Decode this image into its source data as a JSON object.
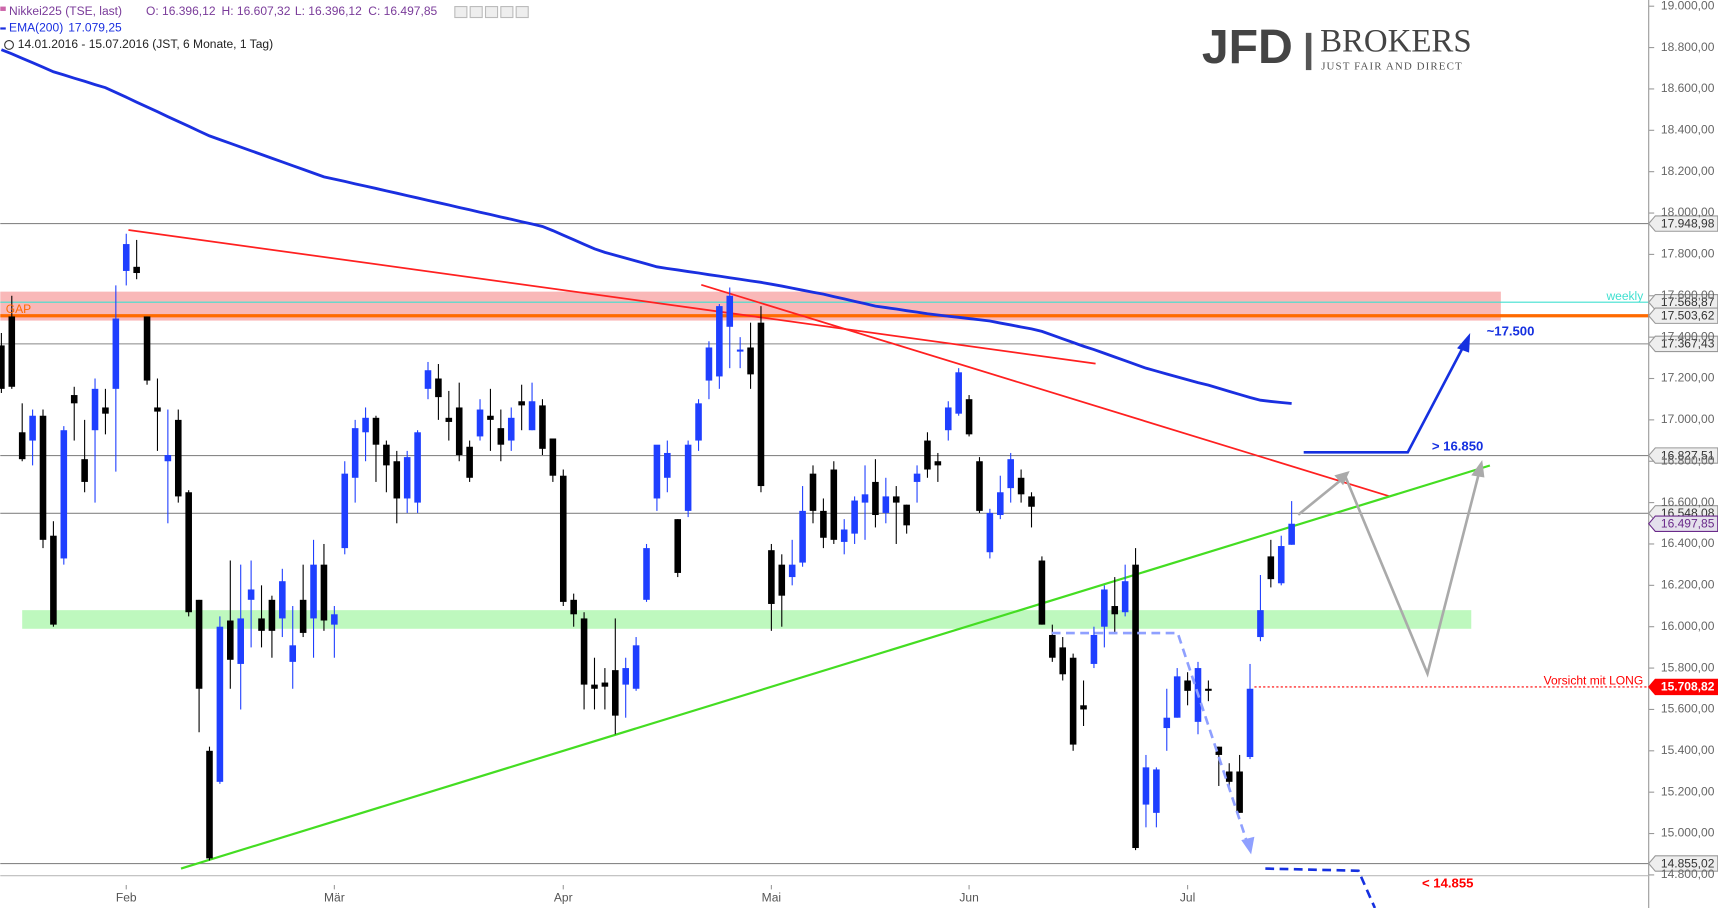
{
  "chart_data": {
    "type": "candlestick",
    "title": "Nikkei225 (TSE, last)",
    "ohlc_header": [
      "O: 16.396,12",
      "H: 16.607,32",
      "L: 16.396,12",
      "C: 16.497,85"
    ],
    "period": "14.01.2016 - 15.07.2016 (JST, 6 Monate, 1 Tag)",
    "logo": {
      "main": "JFD",
      "brand": "BROKERS",
      "tagline": "JUST FAIR AND DIRECT"
    },
    "up_color": "#1f3fff",
    "down_color": "#000000",
    "categories": [
      null,
      null,
      null,
      null,
      null,
      null,
      null,
      null,
      null,
      null,
      null,
      null,
      "Feb",
      null,
      null,
      null,
      null,
      null,
      null,
      null,
      null,
      null,
      null,
      null,
      null,
      null,
      null,
      null,
      null,
      null,
      null,
      null,
      "Mär",
      null,
      null,
      null,
      null,
      null,
      null,
      null,
      null,
      null,
      null,
      null,
      null,
      null,
      null,
      null,
      null,
      null,
      null,
      null,
      null,
      null,
      "Apr",
      null,
      null,
      null,
      null,
      null,
      null,
      null,
      null,
      null,
      null,
      null,
      null,
      null,
      null,
      null,
      null,
      null,
      null,
      null,
      "Mai",
      null,
      null,
      null,
      null,
      null,
      null,
      null,
      null,
      null,
      null,
      null,
      null,
      null,
      null,
      null,
      null,
      null,
      null,
      "Jun",
      null,
      null,
      null,
      null,
      null,
      null,
      null,
      null,
      null,
      null,
      null,
      null,
      null,
      null,
      null,
      null,
      null,
      null,
      null,
      null,
      "Jul",
      null,
      null,
      null,
      null,
      null,
      null,
      null,
      null,
      null,
      null
    ],
    "open": [
      17360,
      17500,
      16940,
      16900,
      17020,
      16440,
      16330,
      17120,
      16810,
      16950,
      17060,
      17150,
      17720,
      17740,
      17500,
      17060,
      16800,
      17000,
      16650,
      16130,
      15400,
      15250,
      16030,
      15820,
      16130,
      16040,
      16130,
      16040,
      15830,
      16130,
      16040,
      16300,
      16010,
      16380,
      16720,
      16940,
      17010,
      16880,
      16800,
      16620,
      16600,
      17150,
      17200,
      17010,
      17060,
      16870,
      16920,
      17020,
      16960,
      16900,
      17090,
      16950,
      17070,
      16910,
      16730,
      16130,
      16040,
      15720,
      15730,
      15790,
      15720,
      15700,
      16130,
      16620,
      16720,
      16520,
      16560,
      16900,
      17190,
      17210,
      17450,
      17330,
      17350,
      17470,
      16370,
      16300,
      16240,
      16310,
      16740,
      16560,
      16760,
      16410,
      16450,
      16600,
      16700,
      16550,
      16630,
      16590,
      16700,
      16900,
      16800,
      16950,
      17030,
      17100,
      16800,
      16360,
      16540,
      16670,
      16720,
      16630,
      16320,
      15960,
      15900,
      15850,
      15620,
      15820,
      16000,
      16100,
      16070,
      16300,
      15140,
      15100,
      15510,
      15560,
      15740,
      15540,
      15700,
      15420,
      15300,
      15300,
      15370,
      15950,
      16340,
      16210,
      16396.12
    ],
    "high": [
      17420,
      17600,
      17080,
      17050,
      17050,
      16510,
      16970,
      17160,
      17000,
      17200,
      17150,
      17650,
      17900,
      17870,
      17500,
      17200,
      17050,
      17050,
      16660,
      16130,
      15420,
      16050,
      16320,
      16300,
      16320,
      16200,
      16150,
      16280,
      16100,
      16300,
      16420,
      16400,
      16100,
      16800,
      17000,
      17060,
      17020,
      16900,
      16850,
      16850,
      16950,
      17280,
      17270,
      17140,
      17180,
      16900,
      17100,
      17150,
      17050,
      17060,
      17170,
      17180,
      17100,
      16910,
      16760,
      16160,
      16070,
      15850,
      15800,
      16040,
      15850,
      15950,
      16400,
      16860,
      16900,
      16520,
      16900,
      17100,
      17380,
      17560,
      17640,
      17400,
      17470,
      17550,
      16400,
      16350,
      16420,
      16680,
      16780,
      16620,
      16800,
      16520,
      16630,
      16780,
      16810,
      16720,
      16680,
      16590,
      16780,
      16940,
      16840,
      17090,
      17250,
      17120,
      16820,
      16570,
      16730,
      16840,
      16760,
      16650,
      16340,
      16010,
      15950,
      15870,
      15740,
      16000,
      16200,
      16240,
      16300,
      16380,
      15380,
      15320,
      15700,
      15800,
      15780,
      15830,
      15740,
      15420,
      15340,
      15380,
      15820,
      16250,
      16420,
      16440,
      16607.32
    ],
    "low": [
      17130,
      17150,
      16800,
      16780,
      16380,
      16000,
      16300,
      16900,
      16650,
      16600,
      16930,
      16750,
      17650,
      17680,
      17170,
      16850,
      16500,
      16600,
      16050,
      15490,
      14870,
      15240,
      15700,
      15600,
      15900,
      15900,
      15850,
      15950,
      15700,
      15950,
      15850,
      15980,
      15850,
      16350,
      16600,
      16800,
      16700,
      16650,
      16500,
      16550,
      16550,
      17100,
      17000,
      16900,
      16800,
      16700,
      16900,
      16850,
      16800,
      16850,
      16950,
      16950,
      16830,
      16700,
      16100,
      16000,
      15600,
      15600,
      15600,
      15480,
      15560,
      15690,
      16120,
      16560,
      16650,
      16240,
      16530,
      16850,
      17100,
      17150,
      17250,
      17250,
      17150,
      16650,
      15980,
      16000,
      16200,
      16290,
      16500,
      16380,
      16400,
      16350,
      16400,
      16420,
      16480,
      16500,
      16400,
      16450,
      16600,
      16720,
      16700,
      16900,
      17020,
      16920,
      16550,
      16330,
      16520,
      16600,
      16600,
      16480,
      16010,
      15830,
      15740,
      15400,
      15520,
      15800,
      15900,
      15970,
      16050,
      14920,
      15030,
      15030,
      15400,
      15560,
      15620,
      15480,
      15640,
      15230,
      15220,
      15100,
      15360,
      15930,
      16190,
      16200,
      16396.12
    ],
    "close": [
      17150,
      17160,
      16810,
      17020,
      16420,
      16010,
      16950,
      17080,
      16700,
      17150,
      17030,
      17490,
      17850,
      17710,
      17190,
      17040,
      16830,
      16630,
      16070,
      15700,
      14880,
      16000,
      15840,
      16040,
      16180,
      15980,
      15980,
      16220,
      15910,
      15970,
      16300,
      16030,
      16060,
      16740,
      16960,
      17010,
      16880,
      16780,
      16620,
      16820,
      16940,
      17240,
      17110,
      16990,
      16830,
      16720,
      17050,
      17000,
      16880,
      17010,
      17070,
      17090,
      16860,
      16730,
      16120,
      16060,
      15720,
      15700,
      15710,
      15570,
      15800,
      15910,
      16380,
      16880,
      16840,
      16260,
      16880,
      17080,
      17350,
      17550,
      17600,
      17340,
      17220,
      16680,
      16110,
      16150,
      16300,
      16560,
      16560,
      16430,
      16420,
      16470,
      16610,
      16640,
      16540,
      16630,
      16600,
      16490,
      16740,
      16760,
      16780,
      17060,
      17230,
      16930,
      16560,
      16550,
      16650,
      16810,
      16640,
      16580,
      16010,
      15850,
      15770,
      15430,
      15600,
      15960,
      16180,
      16060,
      16220,
      14930,
      15320,
      15310,
      15560,
      15760,
      15690,
      15800,
      15690,
      15380,
      15250,
      15100,
      15700,
      16080,
      16230,
      16390,
      16497.85
    ],
    "ema": {
      "name": "EMA(200)",
      "value_label": "17.079,25",
      "color": "#1a2fe0",
      "values": [
        18790,
        18770,
        18748,
        18727,
        18705,
        18683,
        18668,
        18652,
        18637,
        18621,
        18606,
        18583,
        18560,
        18536,
        18513,
        18490,
        18466,
        18443,
        18420,
        18396,
        18373,
        18355,
        18337,
        18319,
        18301,
        18283,
        18265,
        18247,
        18229,
        18211,
        18193,
        18175,
        18164,
        18153,
        18141,
        18130,
        18119,
        18107,
        18096,
        18084,
        18073,
        18061,
        18050,
        18039,
        18027,
        18016,
        18004,
        17993,
        17981,
        17970,
        17958,
        17947,
        17935,
        17915,
        17893,
        17871,
        17849,
        17827,
        17810,
        17796,
        17782,
        17768,
        17754,
        17740,
        17732,
        17725,
        17717,
        17710,
        17702,
        17695,
        17687,
        17680,
        17672,
        17665,
        17656,
        17647,
        17637,
        17627,
        17617,
        17608,
        17596,
        17585,
        17573,
        17562,
        17550,
        17543,
        17536,
        17528,
        17521,
        17513,
        17507,
        17501,
        17496,
        17490,
        17484,
        17478,
        17468,
        17459,
        17449,
        17440,
        17428,
        17410,
        17392,
        17374,
        17356,
        17340,
        17322,
        17304,
        17286,
        17268,
        17250,
        17236,
        17222,
        17208,
        17194,
        17180,
        17168,
        17153,
        17138,
        17123,
        17108,
        17095,
        17089,
        17084,
        17079.25
      ]
    },
    "ylim": [
      14640,
      19030
    ],
    "yticks": [
      {
        "value": 14800,
        "label": "14.800,00"
      },
      {
        "value": 15000,
        "label": "15.000,00"
      },
      {
        "value": 15200,
        "label": "15.200,00"
      },
      {
        "value": 15400,
        "label": "15.400,00"
      },
      {
        "value": 15600,
        "label": "15.600,00"
      },
      {
        "value": 15800,
        "label": "15.800,00"
      },
      {
        "value": 16000,
        "label": "16.000,00"
      },
      {
        "value": 16200,
        "label": "16.200,00"
      },
      {
        "value": 16400,
        "label": "16.400,00"
      },
      {
        "value": 16600,
        "label": "16.600,00"
      },
      {
        "value": 16800,
        "label": "16.800,00"
      },
      {
        "value": 17000,
        "label": "17.000,00"
      },
      {
        "value": 17200,
        "label": "17.200,00"
      },
      {
        "value": 17400,
        "label": "17.400,00"
      },
      {
        "value": 17600,
        "label": "17.600,00"
      },
      {
        "value": 17800,
        "label": "17.800,00"
      },
      {
        "value": 18000,
        "label": "18.000,00"
      },
      {
        "value": 18200,
        "label": "18.200,00"
      },
      {
        "value": 18400,
        "label": "18.400,00"
      },
      {
        "value": 18600,
        "label": "18.600,00"
      },
      {
        "value": 18800,
        "label": "18.800,00"
      },
      {
        "value": 19000,
        "label": "19.000,00"
      }
    ],
    "grid": false,
    "levels": [
      {
        "value": 17948.98,
        "label": "17.948,98",
        "color": "#888888",
        "style": "line"
      },
      {
        "value": 17568.87,
        "label": "17.568,87",
        "color": "#40e0d0",
        "style": "line"
      },
      {
        "value": 17503.62,
        "label": "17.503,62",
        "color": "#ff6a00",
        "style": "thick"
      },
      {
        "value": 17367.43,
        "label": "17.367,43",
        "color": "#888888",
        "style": "line"
      },
      {
        "value": 16827.51,
        "label": "16.827,51",
        "color": "#888888",
        "style": "line"
      },
      {
        "value": 16548.08,
        "label": "16.548,08",
        "color": "#888888",
        "style": "line"
      },
      {
        "value": 16497.85,
        "label": "16.497,85",
        "color": "#6a2a8a",
        "style": "current"
      },
      {
        "value": 15708.82,
        "label": "15.708,82",
        "color": "#ff0000",
        "style": "dotted"
      },
      {
        "value": 14855.02,
        "label": "14.855,02",
        "color": "#888888",
        "style": "line"
      }
    ],
    "zones": [
      {
        "low": 17480,
        "high": 17620,
        "color": "#f7a0a0"
      },
      {
        "low": 15990,
        "high": 16080,
        "color": "#a8f5a8"
      }
    ],
    "annotations": [
      "~17.500",
      "> 16.850",
      "< 14.855",
      "Vorsicht mit LONG",
      "weekly",
      "GAP"
    ]
  }
}
